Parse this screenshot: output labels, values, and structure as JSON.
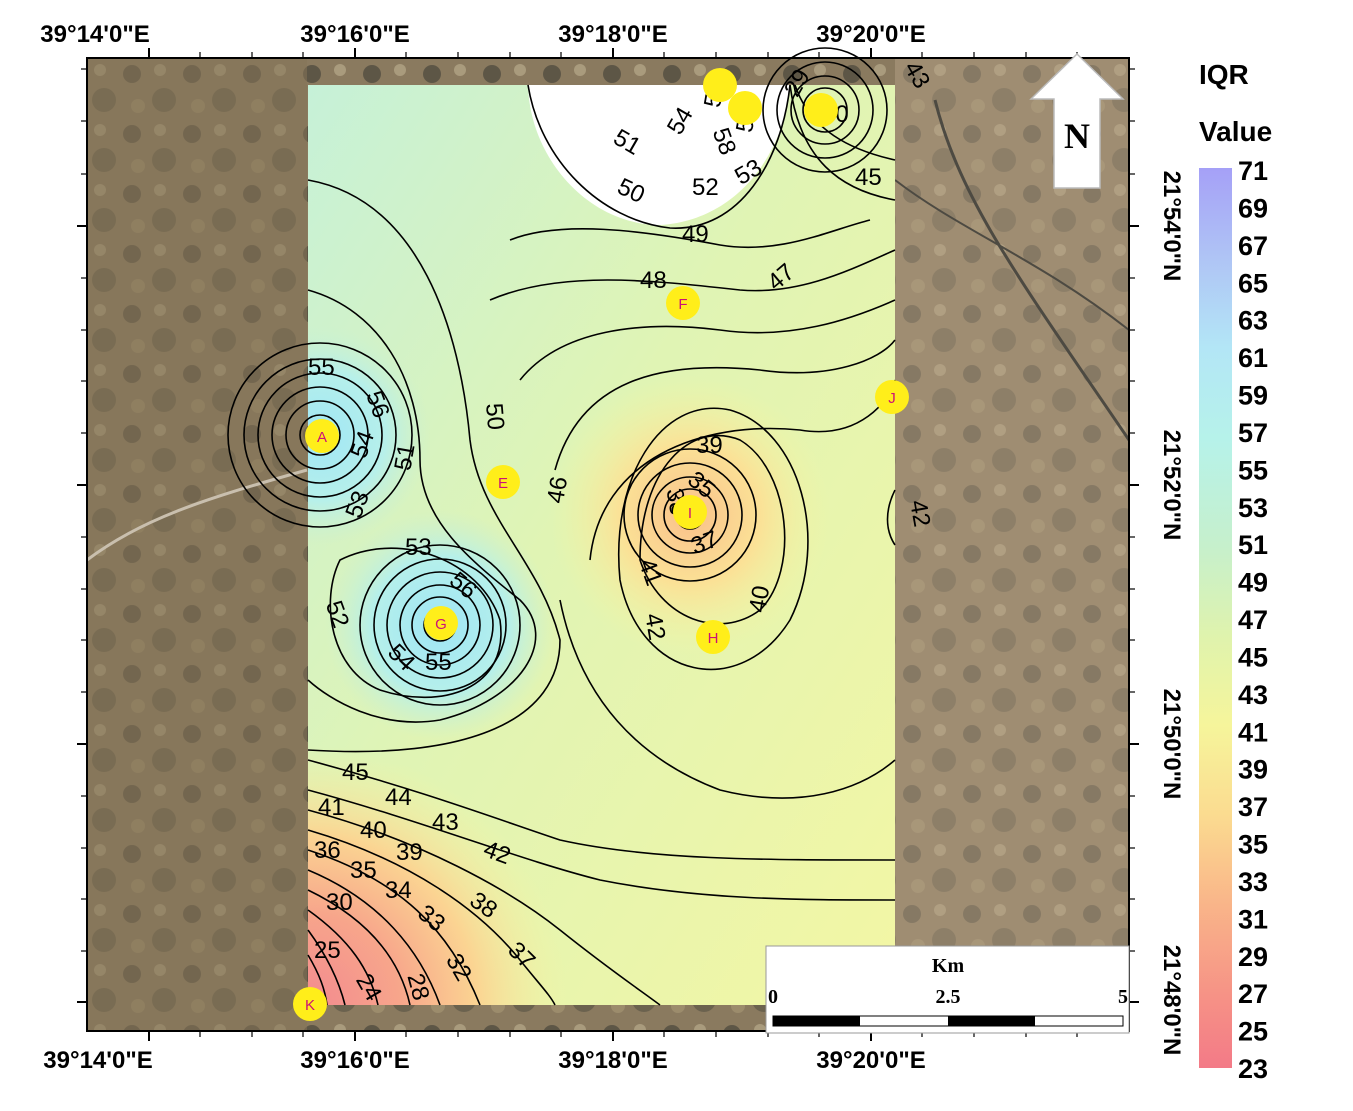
{
  "axis": {
    "top_lon": [
      "39°14'0\"E",
      "39°16'0\"E",
      "39°18'0\"E",
      "39°20'0\"E"
    ],
    "bottom_lon": [
      "39°14'0\"E",
      "39°16'0\"E",
      "39°18'0\"E",
      "39°20'0\"E"
    ],
    "right_lat": [
      "21°54'0\"N",
      "21°52'0\"N",
      "21°50'0\"N",
      "21°48'0\"N"
    ]
  },
  "north_arrow": {
    "label": "N"
  },
  "legend": {
    "title_line1": "IQR",
    "title_line2": "Value",
    "values": [
      "71",
      "69",
      "67",
      "65",
      "63",
      "61",
      "59",
      "57",
      "55",
      "53",
      "51",
      "49",
      "47",
      "45",
      "43",
      "41",
      "39",
      "37",
      "35",
      "33",
      "31",
      "29",
      "27",
      "25",
      "23"
    ],
    "colors": [
      "#a5a0f7",
      "#a9b0f5",
      "#adc2f5",
      "#b0d3f5",
      "#b2e2f6",
      "#b3ecf4",
      "#b4f1ef",
      "#b8f2e6",
      "#bdf1da",
      "#c4f0cf",
      "#cbf0c3",
      "#d6f2b5",
      "#e2f4a8",
      "#eef59c",
      "#f8f59a",
      "#fbea96",
      "#fbd990",
      "#fbc48b",
      "#f9b089",
      "#f79c88",
      "#f58a87",
      "#f37a87"
    ]
  },
  "scale_bar": {
    "unit": "Km",
    "ticks": [
      "0",
      "2.5",
      "5"
    ]
  },
  "sites": [
    {
      "id": "A"
    },
    {
      "id": "E"
    },
    {
      "id": "F"
    },
    {
      "id": "G"
    },
    {
      "id": "H"
    },
    {
      "id": "I"
    },
    {
      "id": "J"
    },
    {
      "id": "K"
    }
  ],
  "contour_labels": [
    "55",
    "54",
    "56",
    "51",
    "53",
    "50",
    "53",
    "56",
    "52",
    "54",
    "55",
    "46",
    "49",
    "48",
    "47",
    "39",
    "35",
    "36",
    "38",
    "37",
    "41",
    "42",
    "40",
    "45",
    "44",
    "43",
    "42",
    "41",
    "40",
    "39",
    "36",
    "35",
    "34",
    "33",
    "38",
    "30",
    "32",
    "37",
    "25",
    "24",
    "28",
    "51",
    "54",
    "56",
    "57",
    "58",
    "52",
    "53",
    "50",
    "29",
    "40",
    "43",
    "45",
    "42"
  ]
}
